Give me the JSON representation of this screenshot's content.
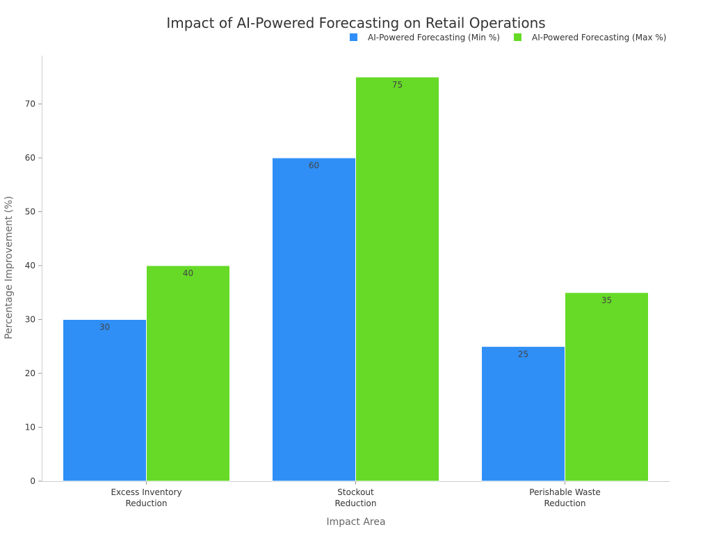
{
  "chart_data": {
    "type": "bar",
    "title": "Impact of AI-Powered Forecasting on Retail Operations",
    "xlabel": "Impact Area",
    "ylabel": "Percentage Improvement (%)",
    "categories": [
      [
        "Excess Inventory",
        "Reduction"
      ],
      [
        "Stockout",
        "Reduction"
      ],
      [
        "Perishable Waste",
        "Reduction"
      ]
    ],
    "series": [
      {
        "name": "AI-Powered Forecasting (Min %)",
        "color": "#2f8ff7",
        "values": [
          30,
          60,
          25
        ]
      },
      {
        "name": "AI-Powered Forecasting (Max %)",
        "color": "#66da26",
        "values": [
          40,
          75,
          35
        ]
      }
    ],
    "ylim": [
      0,
      79
    ],
    "yticks": [
      0,
      10,
      20,
      30,
      40,
      50,
      60,
      70
    ],
    "grid": false,
    "legend_position": "top-right",
    "data_labels": true
  }
}
